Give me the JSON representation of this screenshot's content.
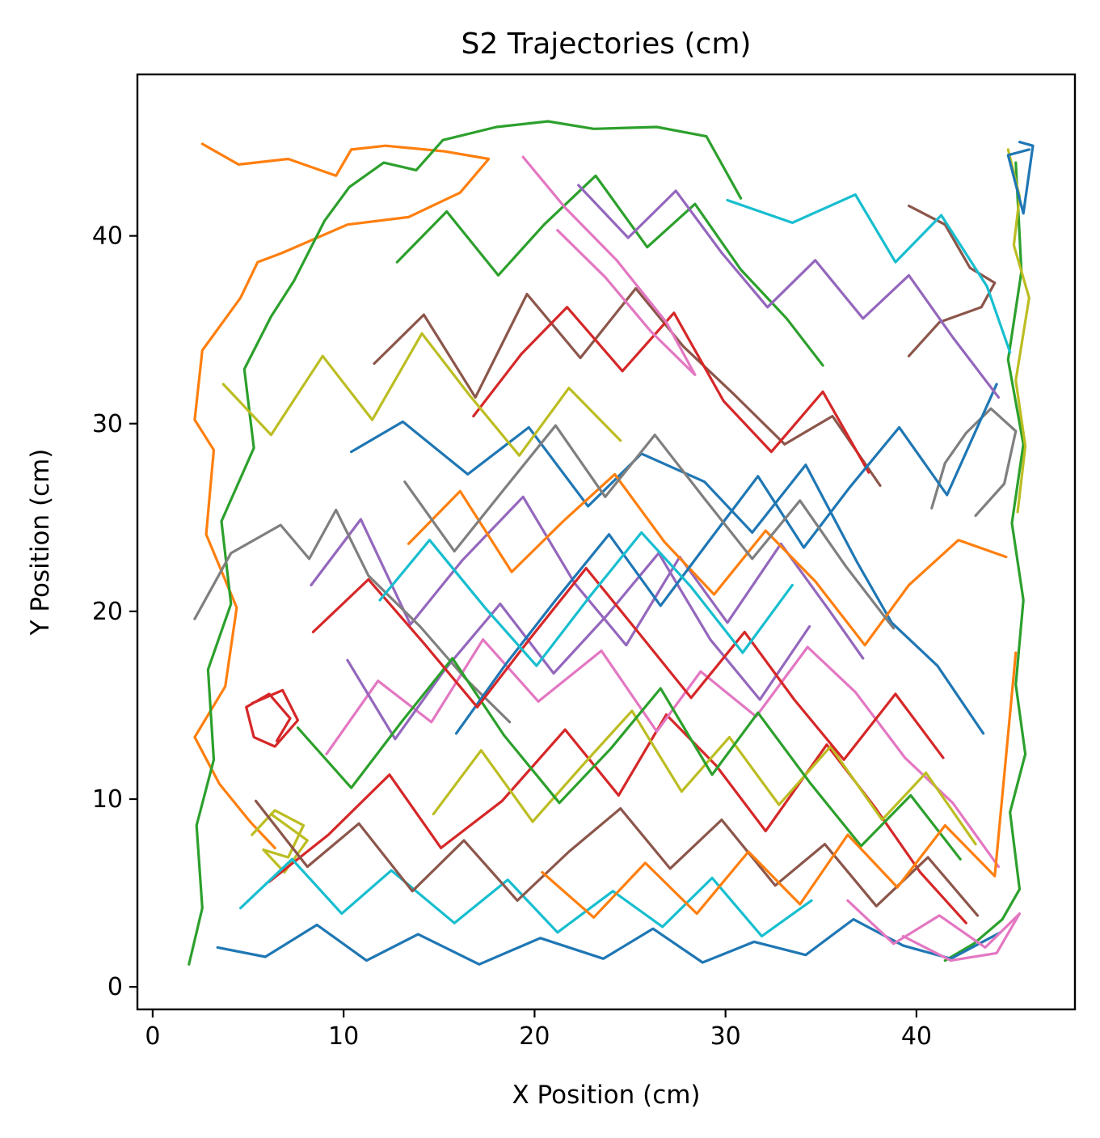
{
  "chart_data": {
    "type": "line",
    "title": "S2 Trajectories (cm)",
    "xlabel": "X Position (cm)",
    "ylabel": "Y Position (cm)",
    "xlim": [
      -0.8,
      48.3
    ],
    "ylim": [
      -1.2,
      48.6
    ],
    "xticks": [
      0,
      10,
      20,
      30,
      40
    ],
    "yticks": [
      0,
      10,
      20,
      30,
      40
    ],
    "grid": false,
    "legend": "none",
    "colors": [
      "#1f77b4",
      "#ff7f0e",
      "#2ca02c",
      "#d62728",
      "#9467bd",
      "#8c564b",
      "#e377c2",
      "#7f7f7f",
      "#bcbd22",
      "#17becf"
    ],
    "series": [
      {
        "color": "#ff7f0e",
        "x": [
          2.6,
          4.5,
          7.1,
          9.6,
          10.4,
          12.2,
          15.3,
          17.6,
          16.1,
          13.4,
          10.2,
          6.8,
          5.5,
          4.6,
          2.6,
          2.2,
          3.2,
          2.8,
          4.4,
          3.8,
          2.2,
          3.5,
          5.1,
          6.4
        ],
        "y": [
          44.9,
          43.8,
          44.1,
          43.2,
          44.6,
          44.8,
          44.5,
          44.1,
          42.3,
          41.0,
          40.6,
          39.1,
          38.6,
          36.7,
          33.9,
          30.2,
          28.6,
          24.1,
          20.2,
          16.0,
          13.3,
          10.8,
          8.8,
          7.4
        ]
      },
      {
        "color": "#2ca02c",
        "x": [
          1.9,
          2.6,
          2.3,
          3.2,
          2.9,
          4.1,
          3.6,
          5.3,
          4.8,
          6.2,
          7.4,
          9.0,
          10.3,
          12.1,
          13.8,
          15.2,
          18.0,
          20.7,
          23.1,
          26.4,
          29.0,
          30.8
        ],
        "y": [
          1.2,
          4.2,
          8.6,
          12.1,
          16.9,
          20.4,
          24.8,
          28.7,
          32.9,
          35.7,
          37.6,
          40.8,
          42.6,
          43.9,
          43.5,
          45.1,
          45.8,
          46.1,
          45.7,
          45.8,
          45.3,
          42.0
        ]
      },
      {
        "color": "#2ca02c",
        "x": [
          45.2,
          45.5,
          44.8,
          45.6,
          45.0,
          45.6,
          45.2,
          45.7,
          44.9,
          45.4,
          44.5,
          43.0,
          41.5
        ],
        "y": [
          43.9,
          38.1,
          33.4,
          28.9,
          24.7,
          20.6,
          16.1,
          12.4,
          9.3,
          5.2,
          3.6,
          2.3,
          1.4
        ]
      },
      {
        "color": "#bcbd22",
        "x": [
          44.8,
          45.4,
          45.1,
          45.9,
          45.2,
          45.7,
          45.3
        ],
        "y": [
          44.6,
          42.1,
          39.5,
          36.7,
          32.3,
          28.8,
          25.3
        ]
      },
      {
        "color": "#1f77b4",
        "x": [
          45.4,
          46.1,
          45.6,
          44.8,
          45.9
        ],
        "y": [
          45.0,
          44.8,
          41.2,
          44.3,
          44.6
        ]
      },
      {
        "color": "#8c564b",
        "x": [
          39.6,
          41.5,
          42.8,
          44.1,
          43.4,
          41.2,
          39.6
        ],
        "y": [
          41.6,
          40.6,
          38.3,
          37.5,
          36.2,
          35.4,
          33.6
        ]
      },
      {
        "color": "#7f7f7f",
        "x": [
          43.1,
          44.6,
          45.2,
          43.9,
          42.6,
          41.5,
          40.8
        ],
        "y": [
          25.1,
          26.8,
          29.6,
          30.8,
          29.5,
          27.9,
          25.5
        ]
      },
      {
        "color": "#d62728",
        "x": [
          5.2,
          6.8,
          7.6,
          6.4,
          5.3,
          4.9,
          6.1,
          7.2,
          6.5
        ],
        "y": [
          15.1,
          15.8,
          14.2,
          12.8,
          13.3,
          14.9,
          15.6,
          14.3,
          13.1
        ]
      },
      {
        "color": "#bcbd22",
        "x": [
          5.2,
          6.4,
          7.9,
          7.1,
          5.8,
          6.9,
          8.1,
          6.2
        ],
        "y": [
          8.1,
          9.4,
          8.6,
          6.9,
          7.3,
          6.1,
          7.8,
          9.2
        ]
      },
      {
        "color": "#1f77b4",
        "x": [
          10.4,
          13.1,
          16.5,
          19.7,
          22.8,
          25.6,
          28.9,
          31.4,
          34.2,
          36.9,
          38.7,
          41.1,
          43.5
        ],
        "y": [
          28.5,
          30.1,
          27.3,
          29.8,
          25.6,
          28.4,
          26.9,
          24.2,
          27.8,
          22.6,
          19.4,
          17.1,
          13.5
        ]
      },
      {
        "color": "#d62728",
        "x": [
          6.1,
          9.2,
          12.4,
          15.1,
          18.3,
          21.6,
          24.4,
          26.9,
          29.5,
          32.1,
          35.3,
          37.8,
          40.2,
          42.6
        ],
        "y": [
          5.6,
          8.1,
          11.3,
          7.4,
          9.9,
          13.7,
          10.2,
          14.5,
          11.8,
          8.3,
          12.9,
          9.6,
          6.1,
          3.4
        ]
      },
      {
        "color": "#9467bd",
        "x": [
          8.3,
          10.9,
          13.5,
          16.2,
          19.4,
          22.1,
          24.8,
          27.6,
          30.1,
          32.9,
          35.4,
          37.2
        ],
        "y": [
          21.4,
          24.9,
          19.3,
          22.7,
          26.1,
          21.5,
          18.2,
          22.9,
          19.4,
          23.6,
          20.1,
          17.5
        ]
      },
      {
        "color": "#e377c2",
        "x": [
          9.1,
          11.8,
          14.6,
          17.3,
          20.2,
          23.5,
          26.4,
          28.7,
          31.6,
          34.3,
          36.8,
          39.4,
          41.9,
          44.3
        ],
        "y": [
          12.4,
          16.3,
          14.1,
          18.5,
          15.2,
          17.9,
          13.6,
          16.8,
          14.4,
          18.1,
          15.7,
          12.2,
          9.8,
          6.4
        ]
      },
      {
        "color": "#8c564b",
        "x": [
          11.6,
          14.2,
          16.9,
          19.6,
          22.4,
          25.3,
          27.8,
          30.4,
          33.1,
          35.6,
          38.1
        ],
        "y": [
          33.2,
          35.8,
          31.4,
          36.9,
          33.5,
          37.2,
          34.1,
          31.6,
          28.9,
          30.4,
          26.7
        ]
      },
      {
        "color": "#2ca02c",
        "x": [
          12.8,
          15.4,
          18.1,
          20.5,
          23.2,
          25.9,
          28.4,
          30.8,
          33.2,
          35.1
        ],
        "y": [
          38.6,
          41.3,
          37.9,
          40.6,
          43.2,
          39.4,
          41.7,
          38.2,
          35.6,
          33.1
        ]
      },
      {
        "color": "#17becf",
        "x": [
          4.6,
          7.3,
          9.9,
          12.5,
          15.8,
          18.6,
          21.2,
          24.1,
          26.7,
          29.3,
          31.9,
          34.5
        ],
        "y": [
          4.2,
          6.8,
          3.9,
          6.2,
          3.4,
          5.7,
          2.9,
          5.1,
          3.2,
          5.8,
          2.7,
          4.6
        ]
      },
      {
        "color": "#ff7f0e",
        "x": [
          13.4,
          16.1,
          18.8,
          21.5,
          24.2,
          26.8,
          29.4,
          32.1,
          34.7,
          37.3,
          39.6,
          42.2,
          44.7
        ],
        "y": [
          23.6,
          26.4,
          22.1,
          24.8,
          27.3,
          23.7,
          20.9,
          24.3,
          21.6,
          18.2,
          21.4,
          23.8,
          22.9
        ]
      },
      {
        "color": "#7f7f7f",
        "x": [
          2.2,
          4.1,
          6.7,
          8.2,
          9.6,
          11.3,
          14.0,
          16.4,
          18.7
        ],
        "y": [
          19.6,
          23.1,
          24.6,
          22.8,
          25.4,
          21.9,
          19.2,
          16.4,
          14.1
        ]
      },
      {
        "color": "#bcbd22",
        "x": [
          14.7,
          17.2,
          19.9,
          22.6,
          25.1,
          27.7,
          30.2,
          32.8,
          35.5,
          38.2,
          40.5,
          43.1
        ],
        "y": [
          9.2,
          12.6,
          8.8,
          11.9,
          14.7,
          10.4,
          13.3,
          9.7,
          12.8,
          8.9,
          11.4,
          7.6
        ]
      },
      {
        "color": "#d62728",
        "x": [
          16.8,
          19.3,
          21.7,
          24.6,
          27.3,
          29.9,
          32.4,
          35.1,
          37.5
        ],
        "y": [
          30.4,
          33.7,
          36.2,
          32.8,
          35.9,
          31.2,
          28.5,
          31.7,
          27.4
        ]
      },
      {
        "color": "#1f77b4",
        "x": [
          3.4,
          5.9,
          8.6,
          11.2,
          13.9,
          17.1,
          20.3,
          23.6,
          26.2,
          28.8,
          31.5,
          34.2,
          36.7,
          39.3,
          41.8,
          44.4
        ],
        "y": [
          2.1,
          1.6,
          3.3,
          1.4,
          2.8,
          1.2,
          2.6,
          1.5,
          3.1,
          1.3,
          2.4,
          1.7,
          3.6,
          2.2,
          1.5,
          2.9
        ]
      },
      {
        "color": "#9467bd",
        "x": [
          10.2,
          12.7,
          15.3,
          18.2,
          21.0,
          23.8,
          26.5,
          29.2,
          31.8,
          34.4
        ],
        "y": [
          17.4,
          13.2,
          16.9,
          20.4,
          16.7,
          19.8,
          23.1,
          18.5,
          15.3,
          19.2
        ]
      },
      {
        "color": "#2ca02c",
        "x": [
          7.6,
          10.4,
          13.1,
          15.7,
          18.4,
          21.3,
          24.0,
          26.6,
          29.3,
          31.7,
          34.4,
          37.1,
          39.7,
          42.3
        ],
        "y": [
          13.8,
          10.6,
          14.2,
          17.5,
          13.4,
          9.8,
          12.7,
          15.9,
          11.3,
          14.6,
          10.9,
          7.5,
          10.2,
          6.8
        ]
      },
      {
        "color": "#e377c2",
        "x": [
          19.4,
          21.6,
          24.3,
          26.9,
          28.4,
          26.1,
          23.7,
          21.2
        ],
        "y": [
          44.2,
          41.5,
          38.7,
          35.4,
          32.6,
          34.9,
          37.8,
          40.3
        ]
      },
      {
        "color": "#17becf",
        "x": [
          30.1,
          33.5,
          36.8,
          38.9,
          41.3,
          43.7,
          44.9
        ],
        "y": [
          41.9,
          40.7,
          42.2,
          38.6,
          41.1,
          37.3,
          33.8
        ]
      },
      {
        "color": "#8c564b",
        "x": [
          5.4,
          8.1,
          10.8,
          13.6,
          16.3,
          19.1,
          21.8,
          24.5,
          27.1,
          29.8,
          32.6,
          35.2,
          37.9,
          40.6,
          43.2
        ],
        "y": [
          9.9,
          6.4,
          8.7,
          5.1,
          7.8,
          4.6,
          7.2,
          9.5,
          6.3,
          8.9,
          5.4,
          7.6,
          4.3,
          6.9,
          3.8
        ]
      },
      {
        "color": "#1f77b4",
        "x": [
          15.9,
          18.5,
          21.1,
          23.9,
          26.6,
          29.1,
          31.7,
          34.1,
          36.5,
          39.1,
          41.6,
          44.2
        ],
        "y": [
          13.5,
          17.2,
          20.6,
          24.1,
          20.3,
          23.7,
          27.2,
          23.4,
          26.6,
          29.8,
          26.2,
          32.1
        ]
      },
      {
        "color": "#bcbd22",
        "x": [
          3.7,
          6.2,
          8.9,
          11.5,
          14.1,
          16.6,
          19.2,
          21.8,
          24.5
        ],
        "y": [
          32.1,
          29.4,
          33.6,
          30.2,
          34.8,
          31.5,
          28.3,
          31.9,
          29.1
        ]
      },
      {
        "color": "#ff7f0e",
        "x": [
          20.4,
          23.1,
          25.8,
          28.5,
          31.2,
          33.9,
          36.4,
          39.0,
          41.5,
          44.1,
          45.2
        ],
        "y": [
          6.1,
          3.7,
          6.6,
          3.9,
          7.2,
          4.4,
          8.1,
          5.3,
          8.6,
          5.9,
          17.8
        ]
      },
      {
        "color": "#e377c2",
        "x": [
          36.4,
          38.8,
          41.2,
          43.6,
          45.4,
          44.2,
          41.8,
          39.3
        ],
        "y": [
          4.6,
          2.3,
          3.8,
          2.1,
          3.9,
          1.8,
          1.4,
          2.7
        ]
      },
      {
        "color": "#7f7f7f",
        "x": [
          13.2,
          15.8,
          18.4,
          21.1,
          23.7,
          26.3,
          28.9,
          31.4,
          33.9,
          36.3,
          38.8
        ],
        "y": [
          26.9,
          23.2,
          26.5,
          29.9,
          26.1,
          29.4,
          26.0,
          22.8,
          25.9,
          22.4,
          19.1
        ]
      },
      {
        "color": "#d62728",
        "x": [
          8.4,
          11.3,
          14.2,
          17.0,
          19.8,
          22.7,
          25.5,
          28.2,
          31.0,
          33.6,
          36.2,
          38.9,
          41.4
        ],
        "y": [
          18.9,
          21.7,
          18.3,
          14.9,
          18.6,
          22.3,
          18.8,
          15.4,
          18.9,
          15.3,
          12.1,
          15.6,
          12.2
        ]
      },
      {
        "color": "#9467bd",
        "x": [
          22.3,
          24.9,
          27.4,
          29.8,
          32.2,
          34.7,
          37.2,
          39.6,
          41.9,
          44.3
        ],
        "y": [
          42.7,
          39.9,
          42.4,
          39.1,
          36.2,
          38.7,
          35.6,
          37.9,
          34.6,
          31.4
        ]
      },
      {
        "color": "#17becf",
        "x": [
          11.9,
          14.5,
          17.4,
          20.1,
          22.9,
          25.6,
          28.2,
          30.9,
          33.5
        ],
        "y": [
          20.6,
          23.8,
          20.2,
          17.1,
          20.8,
          24.2,
          21.3,
          17.8,
          21.4
        ]
      }
    ]
  }
}
